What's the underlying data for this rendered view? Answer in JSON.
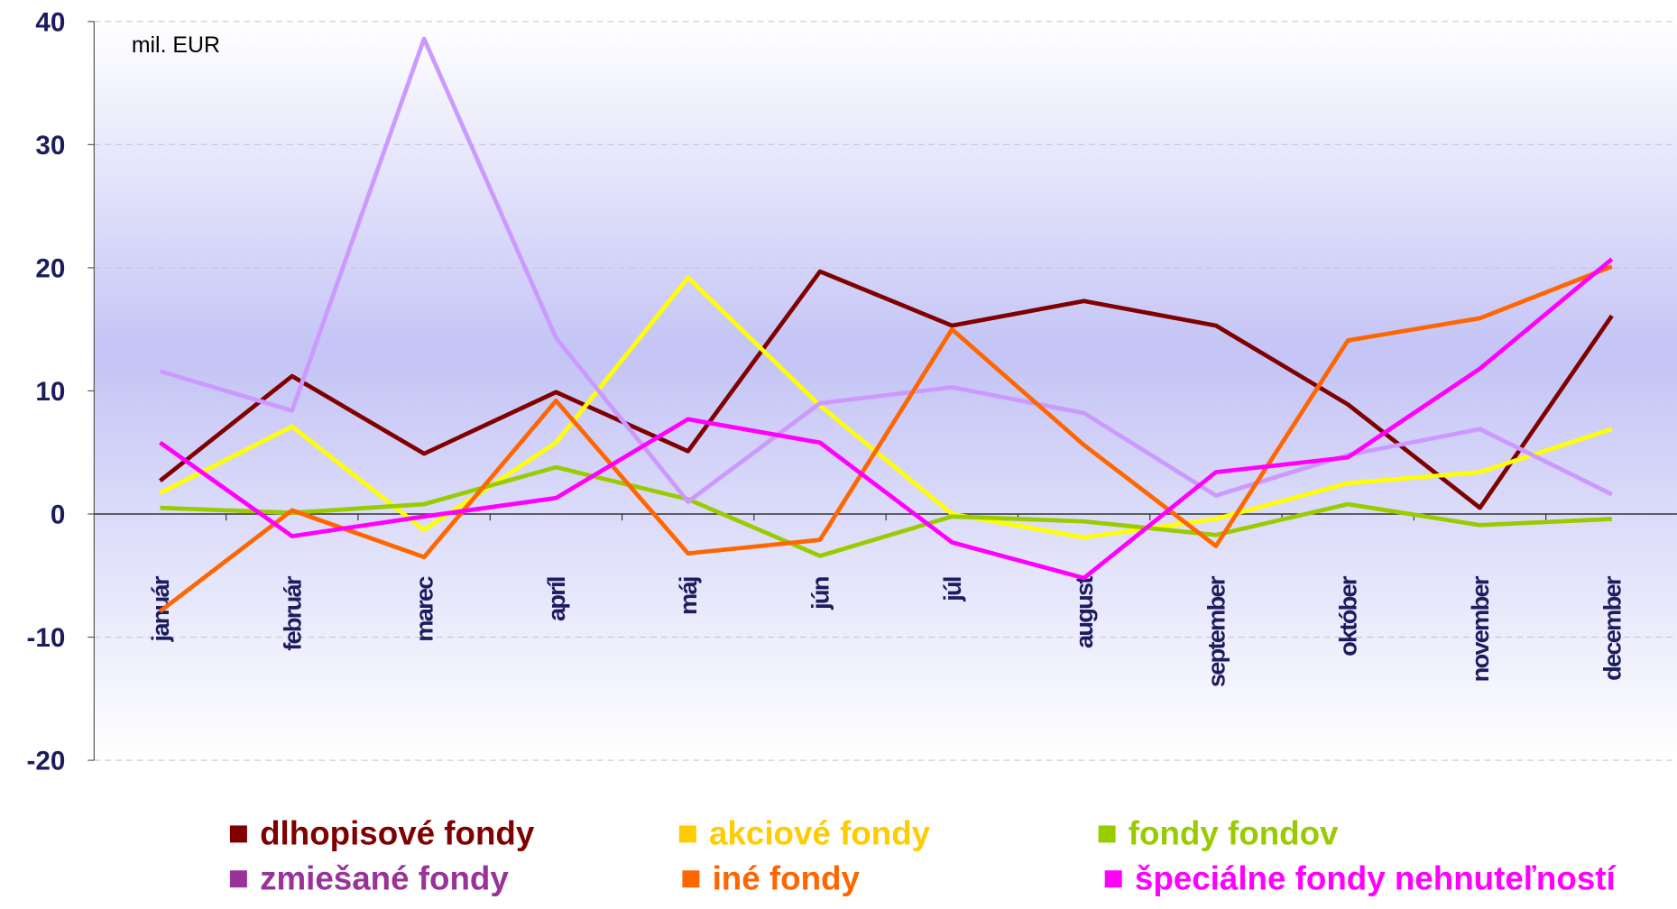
{
  "chart_data": {
    "type": "line",
    "annotation": "mil. EUR",
    "categories": [
      "január",
      "február",
      "marec",
      "apríl",
      "máj",
      "jún",
      "júl",
      "august",
      "september",
      "október",
      "november",
      "december"
    ],
    "series": [
      {
        "name": "dlhopisové fondy",
        "color": "#800000",
        "legend_color": "#800000",
        "values": [
          2.7,
          11.2,
          4.9,
          9.9,
          5.1,
          19.7,
          15.3,
          17.3,
          15.3,
          8.9,
          0.5,
          16.1
        ]
      },
      {
        "name": "akciové fondy",
        "color": "#ffff00",
        "legend_color": "#ffcc00",
        "values": [
          1.7,
          7.1,
          -1.3,
          5.8,
          19.2,
          8.8,
          0,
          -1.9,
          -0.4,
          2.5,
          3.4,
          6.9
        ]
      },
      {
        "name": "fondy fondov",
        "color": "#99cc00",
        "legend_color": "#99cc00",
        "values": [
          0.5,
          0.1,
          0.8,
          3.8,
          1.2,
          -3.4,
          -0.2,
          -0.6,
          -1.7,
          0.8,
          -0.9,
          -0.4
        ]
      },
      {
        "name": "zmiešané fondy",
        "color": "#cc99ff",
        "legend_color": "#993399",
        "values": [
          11.6,
          8.4,
          38.6,
          14.3,
          1.0,
          9.0,
          10.3,
          8.2,
          1.5,
          4.8,
          6.9,
          1.6
        ]
      },
      {
        "name": "iné fondy",
        "color": "#ff6600",
        "legend_color": "#ff6600",
        "values": [
          -7.9,
          0.3,
          -3.5,
          9.2,
          -3.2,
          -2.1,
          15.0,
          5.6,
          -2.6,
          14.1,
          15.9,
          20.1
        ]
      },
      {
        "name": "špeciálne fondy nehnuteľností",
        "color": "#ff00ff",
        "legend_color": "#ff00ff",
        "values": [
          5.8,
          -1.8,
          -0.2,
          1.3,
          7.7,
          5.8,
          -2.3,
          -5.2,
          3.4,
          4.6,
          11.8,
          20.7
        ]
      }
    ],
    "ylim": [
      -20,
      40
    ],
    "yticks": [
      -20,
      -10,
      0,
      10,
      20,
      30,
      40
    ],
    "grid": true
  }
}
